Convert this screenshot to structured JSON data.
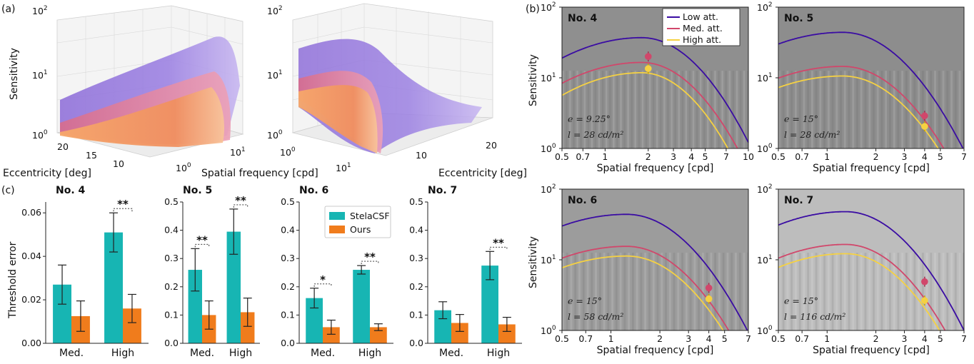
{
  "colors": {
    "low": "#3a0ca3",
    "med": "#d1476b",
    "high": "#f5d142",
    "stela": "#17b5b3",
    "ours": "#f07c1c",
    "surf_low": "#9e7fe0",
    "surf_med": "#e8839d",
    "surf_high": "#f9b46f"
  },
  "panel_a": {
    "label": "(a)",
    "ylabel": "Sensitivity",
    "xlabel_ecc": "Eccentricity [deg]",
    "xlabel_sf": "Spatial frequency [cpd]",
    "z_ticks": [
      "10",
      "10",
      "10"
    ],
    "z_exps": [
      "0",
      "1",
      "2"
    ],
    "ecc_ticks_left": [
      "20",
      "15",
      "10"
    ],
    "sf_ticks_left": [
      "10",
      "10"
    ],
    "sf_exps_left": [
      "0",
      "1"
    ],
    "sf_ticks_right": [
      "10",
      "10"
    ],
    "sf_exps_right": [
      "0",
      "1"
    ],
    "ecc_ticks_right": [
      "10",
      "20"
    ]
  },
  "panel_b": {
    "label": "(b)",
    "ylabel": "Sensitivity",
    "xlabel": "Spatial frequency [cpd]",
    "legend": [
      "Low att.",
      "Med. att.",
      "High att."
    ],
    "y_tick_base": "10",
    "y_tick_exps": [
      "0",
      "1",
      "2"
    ],
    "subplots": [
      {
        "title": "No. 4",
        "ecc": "e = 9.25°",
        "lum": "l = 28 cd/m²",
        "xticks": [
          "0.5",
          "0.7",
          "1",
          "2",
          "3",
          "4",
          "5",
          "7",
          "10"
        ],
        "xmax": 10,
        "peak_f": 1.8,
        "peaks": [
          37,
          16.5,
          11.8
        ],
        "drop": [
          10.5,
          8.4,
          7.2
        ],
        "points": [
          {
            "f": 2,
            "s": 20
          },
          {
            "f": 2,
            "s": 13.5
          }
        ],
        "bg": "#8f8f8f"
      },
      {
        "title": "No. 5",
        "ecc": "e = 15°",
        "lum": "l = 28 cd/m²",
        "xticks": [
          "0.5",
          "0.7",
          "1",
          "2",
          "3",
          "4",
          "5",
          "7"
        ],
        "xmax": 7,
        "peak_f": 1.25,
        "peaks": [
          44,
          14.5,
          10.6
        ],
        "drop": [
          6.9,
          5.25,
          4.85
        ],
        "points": [
          {
            "f": 4,
            "s": 2.9
          },
          {
            "f": 4,
            "s": 2.05
          }
        ],
        "bg": "#8d8d8d"
      },
      {
        "title": "No. 6",
        "ecc": "e = 15°",
        "lum": "l = 58 cd/m²",
        "xticks": [
          "0.5",
          "0.7",
          "1",
          "2",
          "3",
          "4",
          "5",
          "7"
        ],
        "xmax": 7,
        "peak_f": 1.25,
        "peaks": [
          44,
          15.5,
          11.3
        ],
        "drop": [
          6.9,
          5.3,
          4.9
        ],
        "points": [
          {
            "f": 4,
            "s": 4.0
          },
          {
            "f": 4,
            "s": 2.8
          }
        ],
        "bg": "#9c9c9c"
      },
      {
        "title": "No. 7",
        "ecc": "e = 15°",
        "lum": "l = 116 cd/m²",
        "xticks": [
          "0.5",
          "0.7",
          "1",
          "2",
          "3",
          "4",
          "5",
          "7"
        ],
        "xmax": 7,
        "peak_f": 1.3,
        "peaks": [
          48,
          16.5,
          12.2
        ],
        "drop": [
          7.0,
          5.35,
          4.95
        ],
        "points": [
          {
            "f": 4,
            "s": 4.9
          },
          {
            "f": 4,
            "s": 2.65
          }
        ],
        "bg": "#bdbdbd"
      }
    ]
  },
  "chart_data": {
    "type": "bar",
    "ylabel": "Threshold error",
    "series_names": [
      "StelaCSF",
      "Ours"
    ],
    "categories": [
      "Med.",
      "High"
    ],
    "subplots": [
      {
        "title": "No. 4",
        "ylim": [
          0,
          0.065
        ],
        "yticks": [
          "0.00",
          "0.02",
          "0.04",
          "0.06"
        ],
        "ytick_vals": [
          0,
          0.02,
          0.04,
          0.06
        ],
        "stela": [
          0.027,
          0.051
        ],
        "stela_err": [
          0.009,
          0.009
        ],
        "ours": [
          0.0125,
          0.016
        ],
        "ours_err": [
          0.007,
          0.0065
        ],
        "sig": [
          "",
          "**"
        ]
      },
      {
        "title": "No. 5",
        "ylim": [
          0,
          0.5
        ],
        "yticks": [
          "0.0",
          "0.1",
          "0.2",
          "0.3",
          "0.4",
          "0.5"
        ],
        "ytick_vals": [
          0,
          0.1,
          0.2,
          0.3,
          0.4,
          0.5
        ],
        "stela": [
          0.26,
          0.395
        ],
        "stela_err": [
          0.075,
          0.08
        ],
        "ours": [
          0.1,
          0.11
        ],
        "ours_err": [
          0.05,
          0.05
        ],
        "sig": [
          "**",
          "**"
        ]
      },
      {
        "title": "No. 6",
        "ylim": [
          0,
          0.5
        ],
        "yticks": [
          "0.0",
          "0.1",
          "0.2",
          "0.3",
          "0.4",
          "0.5"
        ],
        "ytick_vals": [
          0,
          0.1,
          0.2,
          0.3,
          0.4,
          0.5
        ],
        "stela": [
          0.16,
          0.26
        ],
        "stela_err": [
          0.035,
          0.015
        ],
        "ours": [
          0.057,
          0.057
        ],
        "ours_err": [
          0.025,
          0.012
        ],
        "sig": [
          "*",
          "**"
        ]
      },
      {
        "title": "No. 7",
        "ylim": [
          0,
          0.5
        ],
        "yticks": [
          "0.0",
          "0.1",
          "0.2",
          "0.3",
          "0.4",
          "0.5"
        ],
        "ytick_vals": [
          0,
          0.1,
          0.2,
          0.3,
          0.4,
          0.5
        ],
        "stela": [
          0.117,
          0.275
        ],
        "stela_err": [
          0.03,
          0.05
        ],
        "ours": [
          0.072,
          0.067
        ],
        "ours_err": [
          0.03,
          0.025
        ],
        "sig": [
          "",
          "**"
        ]
      }
    ]
  },
  "panel_c": {
    "label": "(c)"
  }
}
